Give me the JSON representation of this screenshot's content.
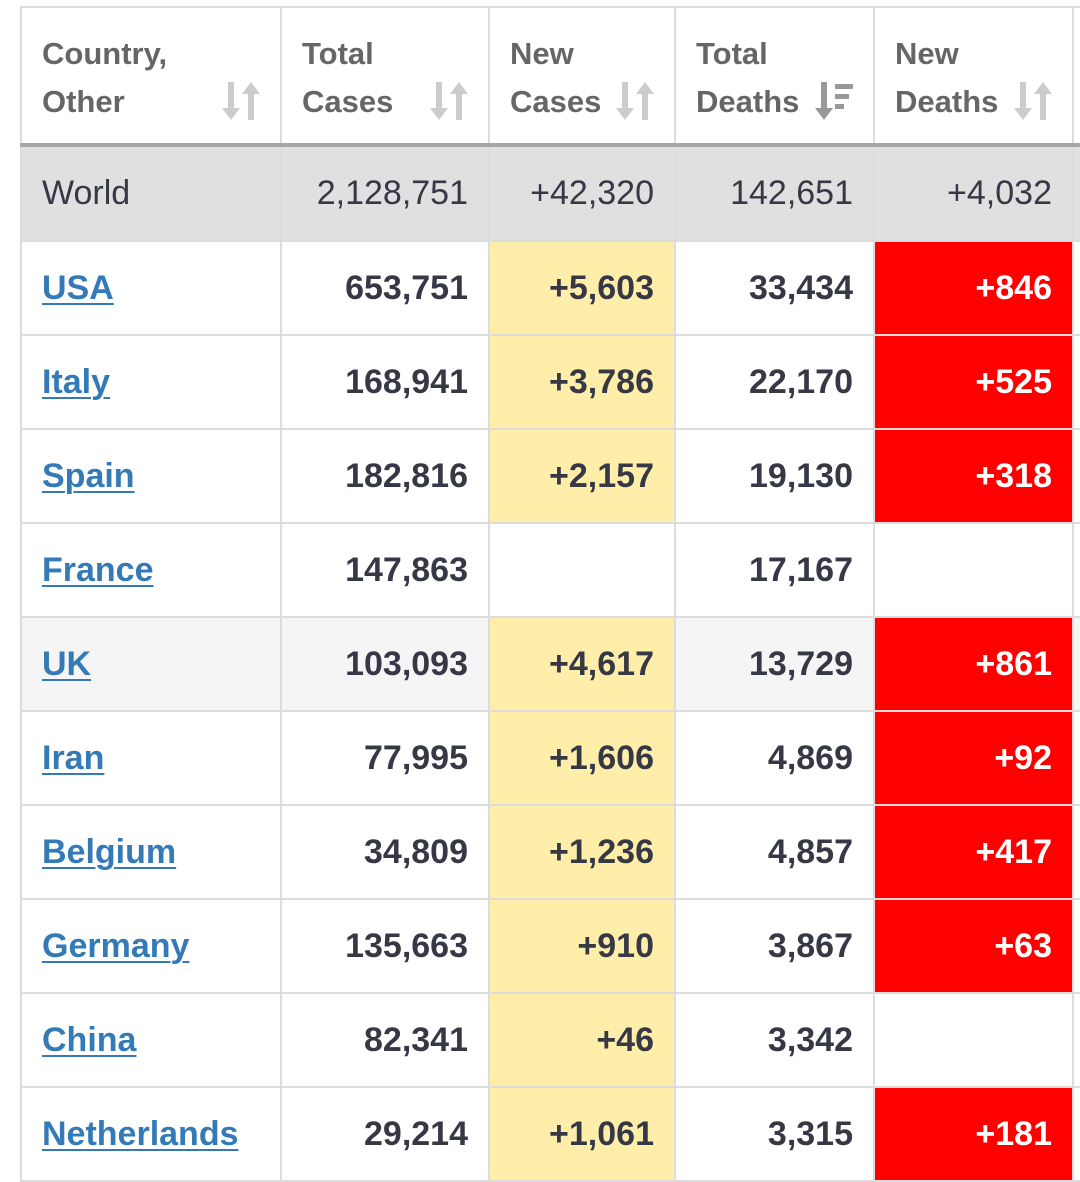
{
  "headers": [
    {
      "line1": "Country,",
      "line2": "Other",
      "sort": "sort-both-icon"
    },
    {
      "line1": "Total",
      "line2": "Cases",
      "sort": "sort-both-icon"
    },
    {
      "line1": "New",
      "line2": "Cases",
      "sort": "sort-both-icon"
    },
    {
      "line1": "Total",
      "line2": "Deaths",
      "sort": "sort-desc-icon"
    },
    {
      "line1": "New",
      "line2": "Deaths",
      "sort": "sort-both-icon"
    }
  ],
  "world": {
    "country": "World",
    "total_cases": "2,128,751",
    "new_cases": "+42,320",
    "total_deaths": "142,651",
    "new_deaths": "+4,032"
  },
  "rows": [
    {
      "country": "USA",
      "total_cases": "653,751",
      "new_cases": "+5,603",
      "total_deaths": "33,434",
      "new_deaths": "+846"
    },
    {
      "country": "Italy",
      "total_cases": "168,941",
      "new_cases": "+3,786",
      "total_deaths": "22,170",
      "new_deaths": "+525"
    },
    {
      "country": "Spain",
      "total_cases": "182,816",
      "new_cases": "+2,157",
      "total_deaths": "19,130",
      "new_deaths": "+318"
    },
    {
      "country": "France",
      "total_cases": "147,863",
      "new_cases": "",
      "total_deaths": "17,167",
      "new_deaths": ""
    },
    {
      "country": "UK",
      "total_cases": "103,093",
      "new_cases": "+4,617",
      "total_deaths": "13,729",
      "new_deaths": "+861"
    },
    {
      "country": "Iran",
      "total_cases": "77,995",
      "new_cases": "+1,606",
      "total_deaths": "4,869",
      "new_deaths": "+92"
    },
    {
      "country": "Belgium",
      "total_cases": "34,809",
      "new_cases": "+1,236",
      "total_deaths": "4,857",
      "new_deaths": "+417"
    },
    {
      "country": "Germany",
      "total_cases": "135,663",
      "new_cases": "+910",
      "total_deaths": "3,867",
      "new_deaths": "+63"
    },
    {
      "country": "China",
      "total_cases": "82,341",
      "new_cases": "+46",
      "total_deaths": "3,342",
      "new_deaths": ""
    },
    {
      "country": "Netherlands",
      "total_cases": "29,214",
      "new_cases": "+1,061",
      "total_deaths": "3,315",
      "new_deaths": "+181"
    }
  ],
  "colors": {
    "new_cases_highlight": "#ffeeaa",
    "new_deaths_highlight": "#ff0000",
    "link": "#337ab7",
    "world_row": "#e0e0e0"
  }
}
